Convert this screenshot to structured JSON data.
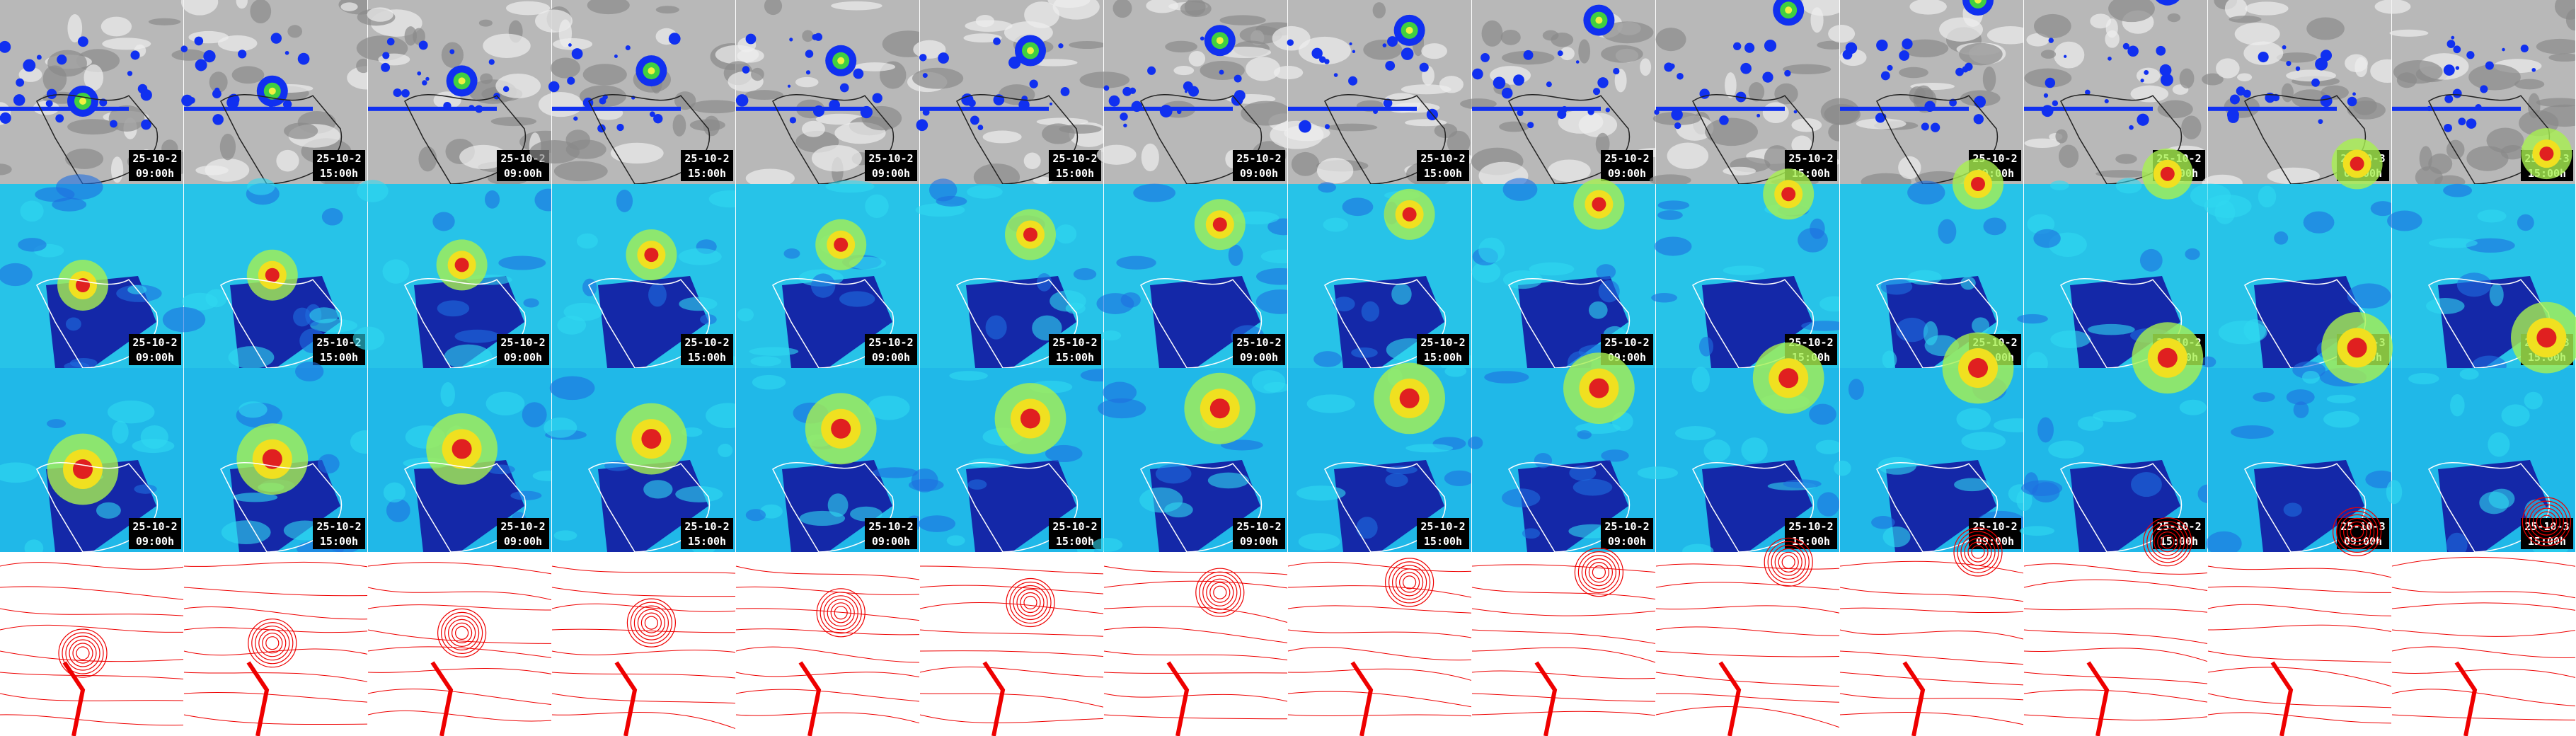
{
  "rows": [
    {
      "panels": [
        {
          "date": "25-10-2",
          "time": "09:00h"
        },
        {
          "date": "25-10-2",
          "time": "15:00h"
        },
        {
          "date": "25-10-2",
          "time": "09:00h"
        },
        {
          "date": "25-10-2",
          "time": "15:00h"
        },
        {
          "date": "25-10-2",
          "time": "09:00h"
        },
        {
          "date": "25-10-2",
          "time": "15:00h"
        },
        {
          "date": "25-10-2",
          "time": "09:00h"
        },
        {
          "date": "25-10-2",
          "time": "15:00h"
        },
        {
          "date": "25-10-2",
          "time": "09:00h"
        },
        {
          "date": "25-10-2",
          "time": "15:00h"
        },
        {
          "date": "25-10-2",
          "time": "09:00h"
        },
        {
          "date": "25-10-2",
          "time": "15:00h"
        },
        {
          "date": "25-10-3",
          "time": "09:00h"
        },
        {
          "date": "25-10-3",
          "time": "15:00h"
        }
      ]
    },
    {
      "panels": [
        {
          "date": "25-10-2",
          "time": "09:00h"
        },
        {
          "date": "25-10-2",
          "time": "15:00h"
        },
        {
          "date": "25-10-2",
          "time": "09:00h"
        },
        {
          "date": "25-10-2",
          "time": "15:00h"
        },
        {
          "date": "25-10-2",
          "time": "09:00h"
        },
        {
          "date": "25-10-2",
          "time": "15:00h"
        },
        {
          "date": "25-10-2",
          "time": "09:00h"
        },
        {
          "date": "25-10-2",
          "time": "15:00h"
        },
        {
          "date": "25-10-2",
          "time": "09:00h"
        },
        {
          "date": "25-10-2",
          "time": "15:00h"
        },
        {
          "date": "25-10-2",
          "time": "09:00h"
        },
        {
          "date": "25-10-2",
          "time": "15:00h"
        },
        {
          "date": "25-10-3",
          "time": "09:00h"
        },
        {
          "date": "25-10-3",
          "time": "15:00h"
        }
      ]
    },
    {
      "panels": [
        {
          "date": "25-10-2",
          "time": "09:00h"
        },
        {
          "date": "25-10-2",
          "time": "15:00h"
        },
        {
          "date": "25-10-2",
          "time": "09:00h"
        },
        {
          "date": "25-10-2",
          "time": "15:00h"
        },
        {
          "date": "25-10-2",
          "time": "09:00h"
        },
        {
          "date": "25-10-2",
          "time": "15:00h"
        },
        {
          "date": "25-10-2",
          "time": "09:00h"
        },
        {
          "date": "25-10-2",
          "time": "15:00h"
        },
        {
          "date": "25-10-2",
          "time": "09:00h"
        },
        {
          "date": "25-10-2",
          "time": "15:00h"
        },
        {
          "date": "25-10-2",
          "time": "09:00h"
        },
        {
          "date": "25-10-2",
          "time": "15:00h"
        },
        {
          "date": "25-10-3",
          "time": "09:00h"
        },
        {
          "date": "25-10-3",
          "time": "15:00h"
        }
      ]
    }
  ]
}
